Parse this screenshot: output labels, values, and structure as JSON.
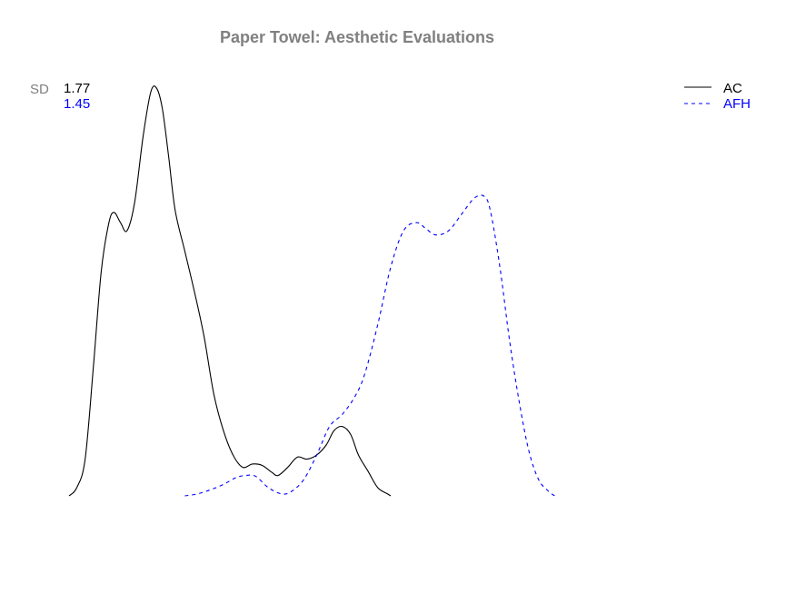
{
  "chart_data": {
    "type": "line",
    "title": "Paper Towel: Aesthetic Evaluations",
    "xlabel": "",
    "ylabel": "",
    "xlim": [
      0.5,
      9.5
    ],
    "ylim": [
      0,
      1
    ],
    "grid": false,
    "axes_shown": false,
    "legend_position": "top-right",
    "sd_label": "SD",
    "colors": {
      "title": "#808080",
      "sd_label": "#808080"
    },
    "series": [
      {
        "name": "AC",
        "sd": "1.77",
        "color": "#000000",
        "dash": "solid",
        "points": [
          [
            0.5,
            0.0
          ],
          [
            0.62,
            0.02
          ],
          [
            0.75,
            0.09
          ],
          [
            0.88,
            0.32
          ],
          [
            1.0,
            0.55
          ],
          [
            1.12,
            0.67
          ],
          [
            1.2,
            0.695
          ],
          [
            1.3,
            0.67
          ],
          [
            1.4,
            0.65
          ],
          [
            1.52,
            0.72
          ],
          [
            1.65,
            0.88
          ],
          [
            1.77,
            0.99
          ],
          [
            1.86,
            1.0
          ],
          [
            1.95,
            0.95
          ],
          [
            2.05,
            0.83
          ],
          [
            2.15,
            0.7
          ],
          [
            2.3,
            0.6
          ],
          [
            2.45,
            0.5
          ],
          [
            2.6,
            0.39
          ],
          [
            2.75,
            0.25
          ],
          [
            2.9,
            0.16
          ],
          [
            3.05,
            0.1
          ],
          [
            3.2,
            0.07
          ],
          [
            3.35,
            0.078
          ],
          [
            3.5,
            0.075
          ],
          [
            3.65,
            0.058
          ],
          [
            3.75,
            0.05
          ],
          [
            3.9,
            0.07
          ],
          [
            4.05,
            0.095
          ],
          [
            4.2,
            0.09
          ],
          [
            4.35,
            0.1
          ],
          [
            4.5,
            0.125
          ],
          [
            4.62,
            0.16
          ],
          [
            4.75,
            0.17
          ],
          [
            4.88,
            0.15
          ],
          [
            5.0,
            0.1
          ],
          [
            5.15,
            0.06
          ],
          [
            5.3,
            0.02
          ],
          [
            5.45,
            0.005
          ],
          [
            5.5,
            0.0
          ]
        ]
      },
      {
        "name": "AFH",
        "sd": "1.45",
        "color": "#0000ff",
        "dash": "dashed",
        "points": [
          [
            2.3,
            0.0
          ],
          [
            2.5,
            0.005
          ],
          [
            2.7,
            0.015
          ],
          [
            2.9,
            0.028
          ],
          [
            3.1,
            0.045
          ],
          [
            3.25,
            0.05
          ],
          [
            3.4,
            0.048
          ],
          [
            3.6,
            0.02
          ],
          [
            3.8,
            0.005
          ],
          [
            3.95,
            0.01
          ],
          [
            4.15,
            0.04
          ],
          [
            4.35,
            0.1
          ],
          [
            4.55,
            0.17
          ],
          [
            4.75,
            0.2
          ],
          [
            4.95,
            0.245
          ],
          [
            5.1,
            0.3
          ],
          [
            5.3,
            0.42
          ],
          [
            5.5,
            0.56
          ],
          [
            5.7,
            0.65
          ],
          [
            5.9,
            0.67
          ],
          [
            6.05,
            0.655
          ],
          [
            6.2,
            0.64
          ],
          [
            6.4,
            0.65
          ],
          [
            6.6,
            0.69
          ],
          [
            6.8,
            0.73
          ],
          [
            6.95,
            0.735
          ],
          [
            7.05,
            0.7
          ],
          [
            7.2,
            0.56
          ],
          [
            7.35,
            0.38
          ],
          [
            7.5,
            0.23
          ],
          [
            7.65,
            0.11
          ],
          [
            7.8,
            0.04
          ],
          [
            7.95,
            0.012
          ],
          [
            8.05,
            0.0
          ]
        ]
      }
    ]
  }
}
